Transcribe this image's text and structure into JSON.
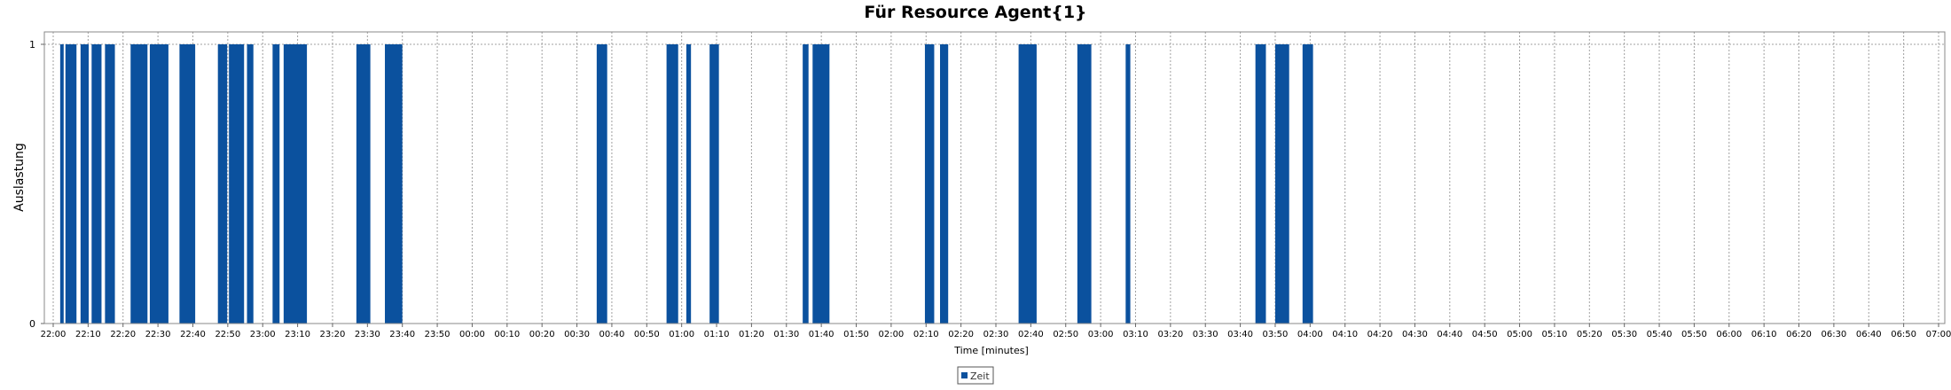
{
  "chart_data": {
    "type": "bar",
    "title": "Für Resource Agent{1}",
    "xlabel": "Time [minutes]",
    "ylabel": "Auslastung",
    "y_ticks": [
      "0",
      "1"
    ],
    "ylim": [
      0,
      1
    ],
    "x_axis_start": "22:00",
    "x_axis_end": "07:00",
    "x_ticks": [
      "22:00",
      "22:10",
      "22:20",
      "22:30",
      "22:40",
      "22:50",
      "23:00",
      "23:10",
      "23:20",
      "23:30",
      "23:40",
      "23:50",
      "00:00",
      "00:10",
      "00:20",
      "00:30",
      "00:40",
      "00:50",
      "01:00",
      "01:10",
      "01:20",
      "01:30",
      "01:40",
      "01:50",
      "02:00",
      "02:10",
      "02:20",
      "02:30",
      "02:40",
      "02:50",
      "03:00",
      "03:10",
      "03:20",
      "03:30",
      "03:40",
      "03:50",
      "04:00",
      "04:10",
      "04:20",
      "04:30",
      "04:40",
      "04:50",
      "05:00",
      "05:10",
      "05:20",
      "05:30",
      "05:40",
      "05:50",
      "06:00",
      "06:10",
      "06:20",
      "06:30",
      "06:40",
      "06:50",
      "07:00"
    ],
    "grid": true,
    "legend_position": "bottom-center",
    "series": [
      {
        "name": "Zeit",
        "color": "#0b519e",
        "value": 1,
        "intervals": [
          [
            "22:02:00",
            "22:03:00"
          ],
          [
            "22:03:30",
            "22:06:40"
          ],
          [
            "22:07:50",
            "22:10:10"
          ],
          [
            "22:11:00",
            "22:13:50"
          ],
          [
            "22:14:50",
            "22:17:40"
          ],
          [
            "22:22:10",
            "22:27:00"
          ],
          [
            "22:27:40",
            "22:33:00"
          ],
          [
            "22:36:10",
            "22:40:40"
          ],
          [
            "22:47:10",
            "22:49:50"
          ],
          [
            "22:50:20",
            "22:54:40"
          ],
          [
            "22:55:30",
            "22:57:20"
          ],
          [
            "23:02:50",
            "23:04:50"
          ],
          [
            "23:06:00",
            "23:12:40"
          ],
          [
            "23:26:50",
            "23:30:50"
          ],
          [
            "23:35:00",
            "23:40:00"
          ],
          [
            "00:35:40",
            "00:38:40"
          ],
          [
            "00:55:40",
            "00:59:00"
          ],
          [
            "01:01:20",
            "01:02:40"
          ],
          [
            "01:08:00",
            "01:10:40"
          ],
          [
            "01:34:40",
            "01:36:20"
          ],
          [
            "01:37:30",
            "01:42:20"
          ],
          [
            "02:09:40",
            "02:12:20"
          ],
          [
            "02:14:00",
            "02:16:20"
          ],
          [
            "02:36:30",
            "02:41:40"
          ],
          [
            "02:53:20",
            "02:57:20"
          ],
          [
            "03:07:10",
            "03:08:30"
          ],
          [
            "03:44:20",
            "03:47:20"
          ],
          [
            "03:50:00",
            "03:54:00"
          ],
          [
            "03:57:50",
            "04:00:50"
          ]
        ]
      }
    ]
  }
}
